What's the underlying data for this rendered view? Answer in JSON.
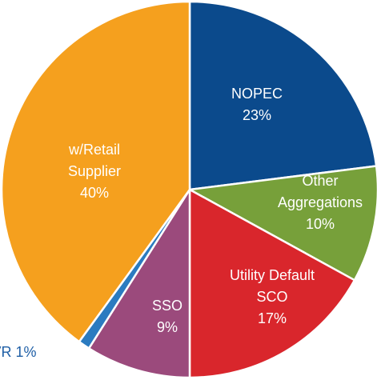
{
  "chart_data": {
    "type": "pie",
    "categories": [
      "NOPEC",
      "Other\nAggregations",
      "Utility Default\nSCO",
      "SSO",
      "MVR",
      "w/Retail\nSupplier"
    ],
    "values": [
      23,
      10,
      17,
      9,
      1,
      40
    ],
    "value_labels": [
      "23%",
      "10%",
      "17%",
      "9%",
      "1%",
      "40%"
    ],
    "colors": [
      "#0b4a8c",
      "#77a03a",
      "#d9262c",
      "#9b4a7c",
      "#2b7bc0",
      "#f5a01e"
    ],
    "label_colors": [
      "#ffffff",
      "#ffffff",
      "#ffffff",
      "#ffffff",
      "#1f5fa6",
      "#ffffff"
    ]
  }
}
